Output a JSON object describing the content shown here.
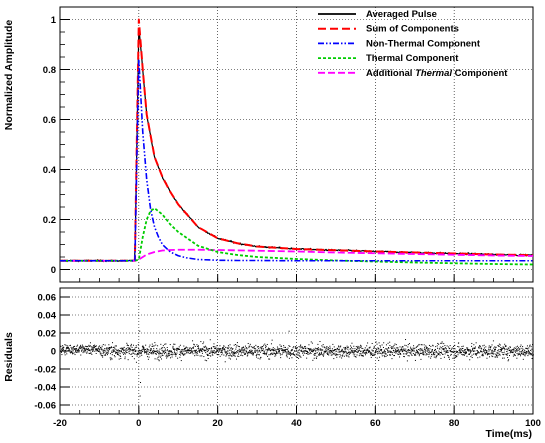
{
  "chart_data": [
    {
      "type": "line",
      "title": "",
      "xlabel": "",
      "ylabel": "Normalized Amplitude",
      "xlim": [
        -20,
        100
      ],
      "ylim": [
        -0.05,
        1.05
      ],
      "x_ticks": [
        "-20",
        "0",
        "20",
        "40",
        "60",
        "80",
        "100"
      ],
      "y_ticks": [
        "0",
        "0.2",
        "0.4",
        "0.6",
        "0.8",
        "1"
      ],
      "grid": true,
      "legend_position": "top-right",
      "legend": [
        {
          "label": "Averaged Pulse",
          "color": "#000000",
          "style": "solid"
        },
        {
          "label": "Sum of Components",
          "color": "#ff0000",
          "style": "long-dash"
        },
        {
          "label": "Non-Thermal Component",
          "color": "#0000ff",
          "style": "dash-dot"
        },
        {
          "label": "Thermal Component",
          "color": "#00cc00",
          "style": "dotted"
        },
        {
          "label": "Additional Thermal Component",
          "label_parts": [
            "Additional ",
            "Thermal",
            " Component"
          ],
          "color": "#ff00ff",
          "style": "dash"
        }
      ],
      "series": [
        {
          "name": "Averaged Pulse",
          "color": "#000000",
          "x": [
            -20,
            -15,
            -10,
            -5,
            -1,
            0,
            1,
            2,
            4,
            6,
            8,
            10,
            15,
            20,
            25,
            30,
            40,
            50,
            60,
            70,
            80,
            90,
            100
          ],
          "y": [
            0.035,
            0.035,
            0.035,
            0.035,
            0.035,
            0.97,
            0.8,
            0.62,
            0.45,
            0.37,
            0.31,
            0.26,
            0.17,
            0.125,
            0.105,
            0.092,
            0.082,
            0.077,
            0.072,
            0.068,
            0.064,
            0.06,
            0.057
          ]
        },
        {
          "name": "Sum of Components",
          "color": "#ff0000",
          "x": [
            -20,
            -10,
            -1,
            0,
            1,
            2,
            4,
            6,
            8,
            10,
            15,
            20,
            25,
            30,
            40,
            50,
            60,
            70,
            80,
            90,
            100
          ],
          "y": [
            0.035,
            0.035,
            0.035,
            1.0,
            0.8,
            0.62,
            0.45,
            0.37,
            0.31,
            0.26,
            0.17,
            0.125,
            0.105,
            0.092,
            0.082,
            0.077,
            0.072,
            0.068,
            0.064,
            0.06,
            0.057
          ]
        },
        {
          "name": "Non-Thermal Component",
          "color": "#0000ff",
          "x": [
            -20,
            -10,
            -1,
            0,
            1,
            2,
            3,
            4,
            5,
            6,
            8,
            10,
            12,
            15,
            20,
            25,
            30,
            40,
            50,
            60,
            70,
            80,
            90,
            100
          ],
          "y": [
            0.035,
            0.035,
            0.035,
            0.84,
            0.55,
            0.36,
            0.24,
            0.17,
            0.13,
            0.1,
            0.07,
            0.055,
            0.047,
            0.04,
            0.037,
            0.036,
            0.036,
            0.035,
            0.035,
            0.035,
            0.035,
            0.035,
            0.035,
            0.035
          ]
        },
        {
          "name": "Thermal Component",
          "color": "#00cc00",
          "x": [
            -20,
            -10,
            -1,
            0,
            1,
            2,
            3,
            4,
            6,
            8,
            10,
            15,
            20,
            25,
            30,
            40,
            50,
            60,
            70,
            80,
            90,
            100
          ],
          "y": [
            0.035,
            0.035,
            0.035,
            0.04,
            0.13,
            0.2,
            0.235,
            0.245,
            0.22,
            0.18,
            0.15,
            0.095,
            0.07,
            0.058,
            0.05,
            0.042,
            0.036,
            0.032,
            0.028,
            0.025,
            0.022,
            0.02
          ]
        },
        {
          "name": "Additional Thermal Component",
          "color": "#ff00ff",
          "x": [
            -20,
            -10,
            -1,
            0,
            2,
            4,
            6,
            8,
            10,
            15,
            20,
            30,
            40,
            50,
            60,
            70,
            80,
            90,
            100
          ],
          "y": [
            0.035,
            0.035,
            0.035,
            0.04,
            0.06,
            0.07,
            0.076,
            0.078,
            0.079,
            0.079,
            0.078,
            0.075,
            0.072,
            0.068,
            0.065,
            0.062,
            0.059,
            0.056,
            0.054
          ]
        }
      ]
    },
    {
      "type": "scatter",
      "title": "",
      "xlabel": "Time(ms)",
      "ylabel": "Residuals",
      "xlim": [
        -20,
        100
      ],
      "ylim": [
        -0.07,
        0.07
      ],
      "x_ticks": [
        "-20",
        "0",
        "20",
        "40",
        "60",
        "80",
        "100"
      ],
      "y_ticks": [
        "-0.06",
        "-0.04",
        "-0.02",
        "0",
        "0.02",
        "0.04",
        "0.06"
      ],
      "grid": true,
      "series": [
        {
          "name": "",
          "color": "#000000",
          "mean": 0.0,
          "spread": 0.012
        }
      ]
    }
  ]
}
